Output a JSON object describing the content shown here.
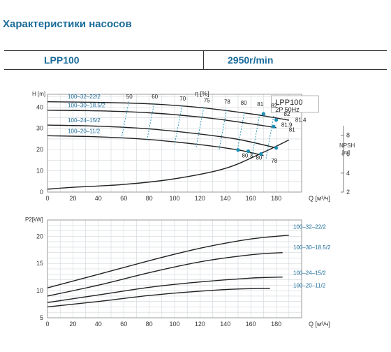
{
  "page": {
    "title": "Характеристики насосов",
    "model": "LPP100",
    "speed": "2950r/min"
  },
  "chart_data": [
    {
      "type": "line",
      "name": "head_efficiency",
      "legend_title": "LPP100",
      "legend_sub": "2P  50Hz",
      "ylabel": "H [m]",
      "xlabel": "Q [м³/ч]",
      "xticks": [
        0,
        20,
        40,
        60,
        80,
        100,
        120,
        140,
        160,
        180
      ],
      "xlim": [
        0,
        200
      ],
      "yticks": [
        0,
        10,
        20,
        30,
        40
      ],
      "ylim": [
        0,
        46
      ],
      "series": [
        {
          "name": "100–32–22/2",
          "x": [
            0,
            40,
            80,
            120,
            160,
            190
          ],
          "y": [
            42.5,
            42.2,
            41.5,
            39.8,
            36.8,
            33.8
          ]
        },
        {
          "name": "100–30–18.5/2",
          "x": [
            0,
            40,
            80,
            120,
            150,
            180
          ],
          "y": [
            38.5,
            38.2,
            37.3,
            35.3,
            33.0,
            30.3
          ]
        },
        {
          "name": "100–24–15/2",
          "x": [
            0,
            40,
            80,
            120,
            150,
            180
          ],
          "y": [
            31.5,
            31.0,
            29.7,
            27.3,
            24.8,
            20.8
          ]
        },
        {
          "name": "100–20–11/2",
          "x": [
            0,
            40,
            80,
            120,
            150,
            170
          ],
          "y": [
            26.5,
            26.0,
            24.7,
            22.3,
            19.8,
            17.2
          ]
        }
      ],
      "npsh": {
        "label": "NPSH",
        "unit": "[m]",
        "ticks": [
          2,
          4,
          6,
          8
        ],
        "x": [
          0,
          20,
          60,
          100,
          140,
          170,
          190
        ],
        "y": [
          2.3,
          2.5,
          2.8,
          3.4,
          4.5,
          6.2,
          7.5
        ]
      },
      "efficiency_label": "η [%]",
      "efficiency_values": [
        "50",
        "60",
        "70",
        "75",
        "78",
        "80",
        "81",
        "82",
        "82",
        "81.4",
        "81.9",
        "81",
        "80.3",
        "80",
        "78"
      ],
      "op_points": [
        {
          "x": 170,
          "y": 36.8
        },
        {
          "x": 180,
          "y": 33.9
        },
        {
          "x": 178,
          "y": 30.8
        },
        {
          "x": 180,
          "y": 20.8
        },
        {
          "x": 150,
          "y": 19.8
        },
        {
          "x": 158,
          "y": 19.2
        },
        {
          "x": 168,
          "y": 17.9
        }
      ]
    },
    {
      "type": "line",
      "name": "power",
      "ylabel": "P2[kW]",
      "xlabel": "Q [м³/ч]",
      "xticks": [
        0,
        20,
        40,
        60,
        80,
        100,
        120,
        140,
        160,
        180
      ],
      "xlim": [
        0,
        200
      ],
      "yticks": [
        5,
        10,
        15,
        20
      ],
      "ylim": [
        5,
        23
      ],
      "series": [
        {
          "name": "100–32–22/2",
          "x": [
            0,
            40,
            80,
            120,
            160,
            190
          ],
          "y": [
            10.5,
            13.0,
            15.5,
            17.8,
            19.5,
            20.2
          ]
        },
        {
          "name": "100–30–18.5/2",
          "x": [
            0,
            40,
            80,
            120,
            160,
            185
          ],
          "y": [
            9.0,
            11.0,
            13.3,
            15.3,
            16.6,
            17.0
          ]
        },
        {
          "name": "100–24–15/2",
          "x": [
            0,
            40,
            80,
            120,
            160,
            185
          ],
          "y": [
            7.8,
            9.2,
            10.6,
            11.6,
            12.3,
            12.5
          ]
        },
        {
          "name": "100–20–11/2",
          "x": [
            0,
            40,
            80,
            120,
            150,
            175
          ],
          "y": [
            7.0,
            8.0,
            9.1,
            9.9,
            10.3,
            10.4
          ]
        }
      ]
    }
  ]
}
